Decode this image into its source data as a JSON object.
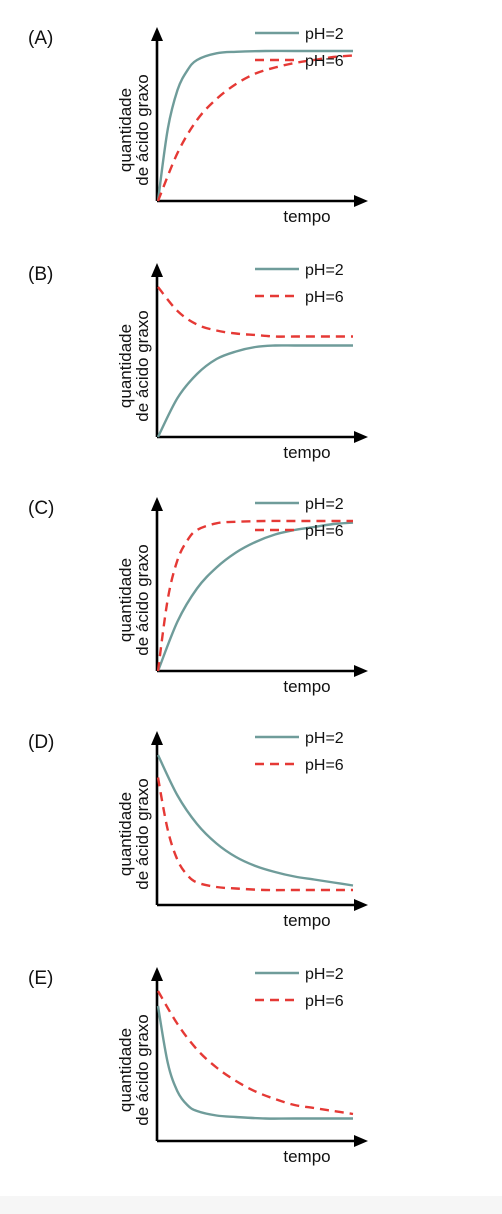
{
  "colors": {
    "ph2": "#6f9c9a",
    "ph6": "#e53935",
    "axis": "#000000"
  },
  "chart_data": [
    {
      "type": "line",
      "panel": "(A)",
      "xlabel": "tempo",
      "ylabel": [
        "quantidade",
        "de ácido graxo"
      ],
      "ylim": [
        0,
        1
      ],
      "series": [
        {
          "name": "pH=2",
          "style": "solid",
          "color": "#6f9c9a",
          "x": [
            0,
            0.05,
            0.1,
            0.15,
            0.2,
            0.3,
            0.4,
            0.55,
            0.7,
            1
          ],
          "y": [
            0,
            0.48,
            0.74,
            0.87,
            0.94,
            0.985,
            0.995,
            1,
            1,
            1
          ]
        },
        {
          "name": "pH=6",
          "style": "dashed",
          "color": "#e53935",
          "x": [
            0,
            0.1,
            0.2,
            0.3,
            0.4,
            0.5,
            0.6,
            0.7,
            0.8,
            0.9,
            1
          ],
          "y": [
            0,
            0.32,
            0.54,
            0.68,
            0.78,
            0.85,
            0.89,
            0.92,
            0.94,
            0.96,
            0.97
          ]
        }
      ]
    },
    {
      "type": "line",
      "panel": "(B)",
      "xlabel": "tempo",
      "ylabel": [
        "quantidade",
        "de ácido graxo"
      ],
      "ylim": [
        0,
        1
      ],
      "series": [
        {
          "name": "pH=2",
          "style": "solid",
          "color": "#6f9c9a",
          "x": [
            0,
            0.1,
            0.2,
            0.3,
            0.4,
            0.5,
            0.6,
            0.7,
            0.8,
            0.9,
            1
          ],
          "y": [
            0,
            0.26,
            0.42,
            0.52,
            0.57,
            0.6,
            0.61,
            0.61,
            0.61,
            0.61,
            0.61
          ]
        },
        {
          "name": "pH=6",
          "style": "dashed",
          "color": "#e53935",
          "x": [
            0,
            0.1,
            0.2,
            0.3,
            0.4,
            0.5,
            0.6,
            0.7,
            0.8,
            0.9,
            1
          ],
          "y": [
            1,
            0.84,
            0.75,
            0.71,
            0.69,
            0.68,
            0.67,
            0.67,
            0.67,
            0.67,
            0.67
          ]
        }
      ]
    },
    {
      "type": "line",
      "panel": "(C)",
      "xlabel": "tempo",
      "ylabel": [
        "quantidade",
        "de ácido graxo"
      ],
      "ylim": [
        0,
        1
      ],
      "series": [
        {
          "name": "pH=2",
          "style": "solid",
          "color": "#6f9c9a",
          "x": [
            0,
            0.1,
            0.2,
            0.3,
            0.4,
            0.5,
            0.6,
            0.7,
            0.8,
            0.9,
            1
          ],
          "y": [
            0,
            0.33,
            0.55,
            0.69,
            0.79,
            0.86,
            0.91,
            0.94,
            0.96,
            0.98,
            0.99
          ]
        },
        {
          "name": "pH=6",
          "style": "dashed",
          "color": "#e53935",
          "x": [
            0,
            0.05,
            0.1,
            0.15,
            0.2,
            0.3,
            0.4,
            0.55,
            0.7,
            1
          ],
          "y": [
            0,
            0.48,
            0.74,
            0.87,
            0.94,
            0.985,
            0.995,
            1,
            1,
            1
          ]
        }
      ]
    },
    {
      "type": "line",
      "panel": "(D)",
      "xlabel": "tempo",
      "ylabel": [
        "quantidade",
        "de ácido graxo"
      ],
      "ylim": [
        0,
        1
      ],
      "series": [
        {
          "name": "pH=2",
          "style": "solid",
          "color": "#6f9c9a",
          "x": [
            0,
            0.1,
            0.2,
            0.3,
            0.4,
            0.5,
            0.6,
            0.7,
            0.8,
            0.9,
            1
          ],
          "y": [
            1,
            0.73,
            0.54,
            0.41,
            0.32,
            0.26,
            0.22,
            0.19,
            0.17,
            0.15,
            0.13
          ]
        },
        {
          "name": "pH=6",
          "style": "dashed",
          "color": "#e53935",
          "x": [
            0,
            0.05,
            0.1,
            0.15,
            0.2,
            0.3,
            0.4,
            0.55,
            0.7,
            1
          ],
          "y": [
            0.85,
            0.5,
            0.3,
            0.2,
            0.15,
            0.12,
            0.11,
            0.1,
            0.1,
            0.1
          ]
        }
      ]
    },
    {
      "type": "line",
      "panel": "(E)",
      "xlabel": "tempo",
      "ylabel": [
        "quantidade",
        "de ácido graxo"
      ],
      "ylim": [
        0,
        1
      ],
      "series": [
        {
          "name": "pH=2",
          "style": "solid",
          "color": "#6f9c9a",
          "x": [
            0,
            0.05,
            0.1,
            0.15,
            0.2,
            0.3,
            0.4,
            0.55,
            0.7,
            1
          ],
          "y": [
            0.9,
            0.52,
            0.33,
            0.24,
            0.2,
            0.17,
            0.16,
            0.15,
            0.15,
            0.15
          ]
        },
        {
          "name": "pH=6",
          "style": "dashed",
          "color": "#e53935",
          "x": [
            0,
            0.1,
            0.2,
            0.3,
            0.4,
            0.5,
            0.6,
            0.7,
            0.8,
            0.9,
            1
          ],
          "y": [
            1,
            0.78,
            0.61,
            0.49,
            0.4,
            0.33,
            0.28,
            0.24,
            0.22,
            0.2,
            0.18
          ]
        }
      ]
    }
  ]
}
